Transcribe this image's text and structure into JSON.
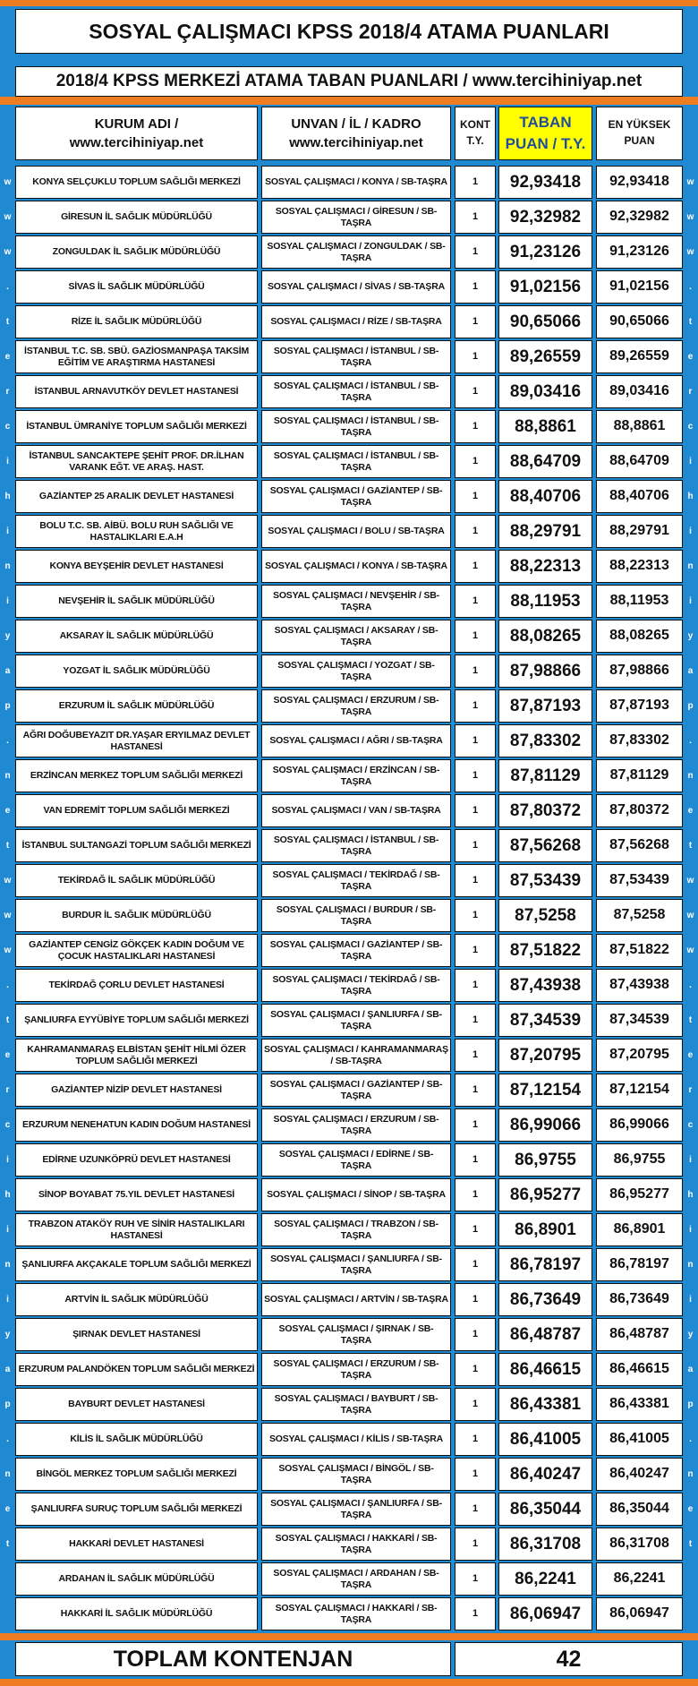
{
  "title": "SOSYAL ÇALIŞMACI KPSS 2018/4 ATAMA PUANLARI",
  "subtitle": "2018/4 KPSS MERKEZİ ATAMA TABAN PUANLARI / www.tercihiniyap.net",
  "side_text": "www.tercihiniyap.net",
  "table": {
    "header": [
      [
        "KURUM ADI /",
        "www.tercihiniyap.net"
      ],
      [
        "UNVAN / İL / KADRO",
        "www.tercihiniyap.net"
      ],
      [
        "KONT",
        "T.Y."
      ],
      [
        "TABAN",
        "PUAN / T.Y."
      ],
      [
        "EN YÜKSEK",
        "PUAN"
      ]
    ],
    "rows": [
      [
        "KONYA SELÇUKLU TOPLUM SAĞLIĞI MERKEZİ",
        "SOSYAL ÇALIŞMACI / KONYA / SB-TAŞRA",
        "1",
        "92,93418",
        "92,93418"
      ],
      [
        "GİRESUN İL SAĞLIK MÜDÜRLÜĞÜ",
        "SOSYAL ÇALIŞMACI / GİRESUN / SB-TAŞRA",
        "1",
        "92,32982",
        "92,32982"
      ],
      [
        "ZONGULDAK İL SAĞLIK MÜDÜRLÜĞÜ",
        "SOSYAL ÇALIŞMACI / ZONGULDAK / SB-TAŞRA",
        "1",
        "91,23126",
        "91,23126"
      ],
      [
        "SİVAS İL SAĞLIK MÜDÜRLÜĞÜ",
        "SOSYAL ÇALIŞMACI / SİVAS / SB-TAŞRA",
        "1",
        "91,02156",
        "91,02156"
      ],
      [
        "RİZE İL SAĞLIK MÜDÜRLÜĞÜ",
        "SOSYAL ÇALIŞMACI / RİZE / SB-TAŞRA",
        "1",
        "90,65066",
        "90,65066"
      ],
      [
        "İSTANBUL T.C. SB. SBÜ. GAZİOSMANPAŞA TAKSİM EĞİTİM VE ARAŞTIRMA HASTANESİ",
        "SOSYAL ÇALIŞMACI / İSTANBUL / SB-TAŞRA",
        "1",
        "89,26559",
        "89,26559"
      ],
      [
        "İSTANBUL ARNAVUTKÖY DEVLET HASTANESİ",
        "SOSYAL ÇALIŞMACI / İSTANBUL / SB-TAŞRA",
        "1",
        "89,03416",
        "89,03416"
      ],
      [
        "İSTANBUL ÜMRANİYE TOPLUM SAĞLIĞI MERKEZİ",
        "SOSYAL ÇALIŞMACI / İSTANBUL / SB-TAŞRA",
        "1",
        "88,8861",
        "88,8861"
      ],
      [
        "İSTANBUL SANCAKTEPE ŞEHİT PROF. DR.İLHAN VARANK EĞT. VE ARAŞ. HAST.",
        "SOSYAL ÇALIŞMACI / İSTANBUL / SB-TAŞRA",
        "1",
        "88,64709",
        "88,64709"
      ],
      [
        "GAZİANTEP 25 ARALIK DEVLET HASTANESİ",
        "SOSYAL ÇALIŞMACI / GAZİANTEP / SB-TAŞRA",
        "1",
        "88,40706",
        "88,40706"
      ],
      [
        "BOLU T.C. SB. AİBÜ. BOLU RUH SAĞLIĞI VE HASTALIKLARI E.A.H",
        "SOSYAL ÇALIŞMACI / BOLU / SB-TAŞRA",
        "1",
        "88,29791",
        "88,29791"
      ],
      [
        "KONYA BEYŞEHİR DEVLET HASTANESİ",
        "SOSYAL ÇALIŞMACI / KONYA / SB-TAŞRA",
        "1",
        "88,22313",
        "88,22313"
      ],
      [
        "NEVŞEHİR İL SAĞLIK MÜDÜRLÜĞÜ",
        "SOSYAL ÇALIŞMACI / NEVŞEHİR / SB-TAŞRA",
        "1",
        "88,11953",
        "88,11953"
      ],
      [
        "AKSARAY İL SAĞLIK MÜDÜRLÜĞÜ",
        "SOSYAL ÇALIŞMACI / AKSARAY / SB-TAŞRA",
        "1",
        "88,08265",
        "88,08265"
      ],
      [
        "YOZGAT İL SAĞLIK MÜDÜRLÜĞÜ",
        "SOSYAL ÇALIŞMACI / YOZGAT / SB-TAŞRA",
        "1",
        "87,98866",
        "87,98866"
      ],
      [
        "ERZURUM İL SAĞLIK MÜDÜRLÜĞÜ",
        "SOSYAL ÇALIŞMACI / ERZURUM / SB-TAŞRA",
        "1",
        "87,87193",
        "87,87193"
      ],
      [
        "AĞRI DOĞUBEYAZIT DR.YAŞAR ERYILMAZ DEVLET HASTANESİ",
        "SOSYAL ÇALIŞMACI / AĞRI / SB-TAŞRA",
        "1",
        "87,83302",
        "87,83302"
      ],
      [
        "ERZİNCAN MERKEZ TOPLUM SAĞLIĞI MERKEZİ",
        "SOSYAL ÇALIŞMACI / ERZİNCAN / SB-TAŞRA",
        "1",
        "87,81129",
        "87,81129"
      ],
      [
        "VAN EDREMİT TOPLUM SAĞLIĞI MERKEZİ",
        "SOSYAL ÇALIŞMACI / VAN / SB-TAŞRA",
        "1",
        "87,80372",
        "87,80372"
      ],
      [
        "İSTANBUL SULTANGAZİ TOPLUM SAĞLIĞI MERKEZİ",
        "SOSYAL ÇALIŞMACI / İSTANBUL / SB-TAŞRA",
        "1",
        "87,56268",
        "87,56268"
      ],
      [
        "TEKİRDAĞ İL SAĞLIK MÜDÜRLÜĞÜ",
        "SOSYAL ÇALIŞMACI / TEKİRDAĞ / SB-TAŞRA",
        "1",
        "87,53439",
        "87,53439"
      ],
      [
        "BURDUR İL SAĞLIK MÜDÜRLÜĞÜ",
        "SOSYAL ÇALIŞMACI / BURDUR / SB-TAŞRA",
        "1",
        "87,5258",
        "87,5258"
      ],
      [
        "GAZİANTEP CENGİZ GÖKÇEK KADIN DOĞUM VE ÇOCUK HASTALIKLARI HASTANESİ",
        "SOSYAL ÇALIŞMACI / GAZİANTEP / SB-TAŞRA",
        "1",
        "87,51822",
        "87,51822"
      ],
      [
        "TEKİRDAĞ ÇORLU DEVLET HASTANESİ",
        "SOSYAL ÇALIŞMACI / TEKİRDAĞ / SB-TAŞRA",
        "1",
        "87,43938",
        "87,43938"
      ],
      [
        "ŞANLIURFA EYYÜBİYE TOPLUM SAĞLIĞI MERKEZİ",
        "SOSYAL ÇALIŞMACI / ŞANLIURFA / SB-TAŞRA",
        "1",
        "87,34539",
        "87,34539"
      ],
      [
        "KAHRAMANMARAŞ ELBİSTAN ŞEHİT HİLMİ ÖZER TOPLUM SAĞLIĞI MERKEZİ",
        "SOSYAL ÇALIŞMACI / KAHRAMANMARAŞ / SB-TAŞRA",
        "1",
        "87,20795",
        "87,20795"
      ],
      [
        "GAZİANTEP NİZİP DEVLET HASTANESİ",
        "SOSYAL ÇALIŞMACI / GAZİANTEP / SB-TAŞRA",
        "1",
        "87,12154",
        "87,12154"
      ],
      [
        "ERZURUM NENEHATUN KADIN DOĞUM HASTANESİ",
        "SOSYAL ÇALIŞMACI / ERZURUM / SB-TAŞRA",
        "1",
        "86,99066",
        "86,99066"
      ],
      [
        "EDİRNE UZUNKÖPRÜ DEVLET HASTANESİ",
        "SOSYAL ÇALIŞMACI / EDİRNE / SB-TAŞRA",
        "1",
        "86,9755",
        "86,9755"
      ],
      [
        "SİNOP BOYABAT 75.YIL DEVLET HASTANESİ",
        "SOSYAL ÇALIŞMACI / SİNOP / SB-TAŞRA",
        "1",
        "86,95277",
        "86,95277"
      ],
      [
        "TRABZON ATAKÖY RUH VE SİNİR HASTALIKLARI HASTANESİ",
        "SOSYAL ÇALIŞMACI / TRABZON / SB-TAŞRA",
        "1",
        "86,8901",
        "86,8901"
      ],
      [
        "ŞANLIURFA AKÇAKALE TOPLUM SAĞLIĞI MERKEZİ",
        "SOSYAL ÇALIŞMACI / ŞANLIURFA / SB-TAŞRA",
        "1",
        "86,78197",
        "86,78197"
      ],
      [
        "ARTVİN İL SAĞLIK MÜDÜRLÜĞÜ",
        "SOSYAL ÇALIŞMACI / ARTVİN / SB-TAŞRA",
        "1",
        "86,73649",
        "86,73649"
      ],
      [
        "ŞIRNAK DEVLET HASTANESİ",
        "SOSYAL ÇALIŞMACI / ŞIRNAK / SB-TAŞRA",
        "1",
        "86,48787",
        "86,48787"
      ],
      [
        "ERZURUM PALANDÖKEN TOPLUM SAĞLIĞI MERKEZİ",
        "SOSYAL ÇALIŞMACI / ERZURUM / SB-TAŞRA",
        "1",
        "86,46615",
        "86,46615"
      ],
      [
        "BAYBURT DEVLET HASTANESİ",
        "SOSYAL ÇALIŞMACI / BAYBURT / SB-TAŞRA",
        "1",
        "86,43381",
        "86,43381"
      ],
      [
        "KİLİS İL SAĞLIK MÜDÜRLÜĞÜ",
        "SOSYAL ÇALIŞMACI / KİLİS / SB-TAŞRA",
        "1",
        "86,41005",
        "86,41005"
      ],
      [
        "BİNGÖL MERKEZ TOPLUM SAĞLIĞI MERKEZİ",
        "SOSYAL ÇALIŞMACI / BİNGÖL / SB-TAŞRA",
        "1",
        "86,40247",
        "86,40247"
      ],
      [
        "ŞANLIURFA SURUÇ TOPLUM SAĞLIĞI MERKEZİ",
        "SOSYAL ÇALIŞMACI / ŞANLIURFA / SB-TAŞRA",
        "1",
        "86,35044",
        "86,35044"
      ],
      [
        "HAKKARİ DEVLET HASTANESİ",
        "SOSYAL ÇALIŞMACI / HAKKARİ / SB-TAŞRA",
        "1",
        "86,31708",
        "86,31708"
      ],
      [
        "ARDAHAN İL SAĞLIK MÜDÜRLÜĞÜ",
        "SOSYAL ÇALIŞMACI / ARDAHAN / SB-TAŞRA",
        "1",
        "86,2241",
        "86,2241"
      ],
      [
        "HAKKARİ İL SAĞLIK MÜDÜRLÜĞÜ",
        "SOSYAL ÇALIŞMACI / HAKKARİ / SB-TAŞRA",
        "1",
        "86,06947",
        "86,06947"
      ]
    ]
  },
  "footer": {
    "label": "TOPLAM KONTENJAN",
    "total": "42"
  }
}
